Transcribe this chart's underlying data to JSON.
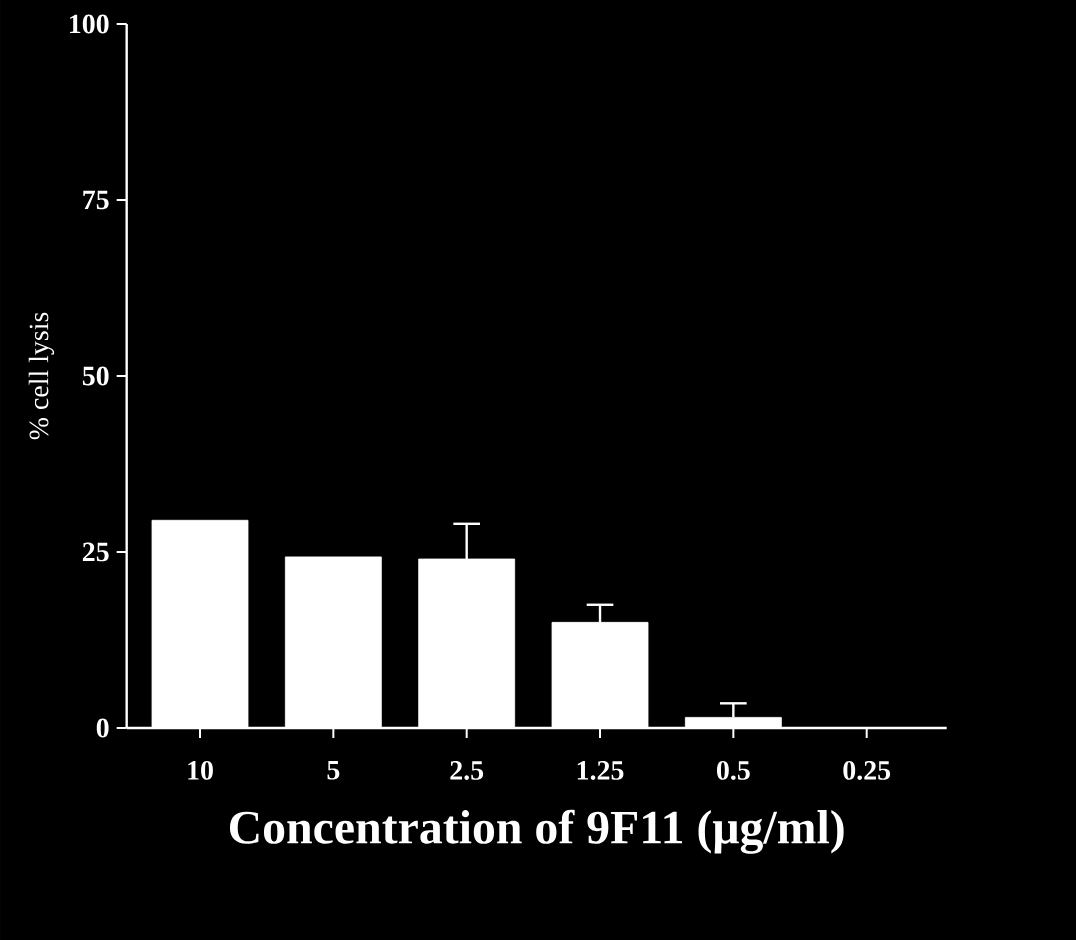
{
  "chart_data": {
    "type": "bar",
    "xlabel": "Concentration of 9F11 (μg/ml)",
    "ylabel": "% cell lysis",
    "categories": [
      "10",
      "5",
      "2.5",
      "1.25",
      "0.5",
      "0.25"
    ],
    "values": [
      29.5,
      24.3,
      24,
      15,
      1.5,
      0
    ],
    "errors": [
      null,
      null,
      5,
      2.5,
      2,
      null
    ],
    "color": "#ffffff",
    "ylim": [
      0,
      100
    ],
    "yticks": [
      0,
      25,
      50,
      75,
      100
    ]
  }
}
